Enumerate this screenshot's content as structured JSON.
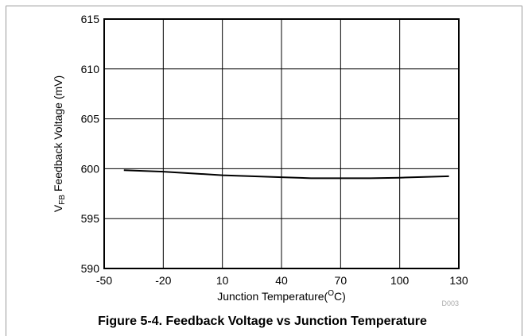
{
  "chart_data": {
    "type": "line",
    "y_label": {
      "main": "V",
      "sub": "FB",
      "rest": " Feedback Voltage (mV)"
    },
    "x_label": {
      "main": "Junction Temperature(",
      "sup": "O",
      "rest": "C)"
    },
    "annotation": "D003",
    "caption": "Figure 5-4. Feedback Voltage vs Junction Temperature",
    "x": [
      -40,
      -20,
      10,
      40,
      55,
      70,
      85,
      100,
      125
    ],
    "series": [
      {
        "color": "#000000",
        "values": [
          599.85,
          599.7,
          599.35,
          599.15,
          599.05,
          599.05,
          599.05,
          599.1,
          599.25
        ]
      }
    ],
    "xlim": [
      -50,
      130
    ],
    "xticks": [
      -50,
      -20,
      10,
      40,
      70,
      100,
      130
    ],
    "ylim": [
      590,
      615
    ],
    "yticks": [
      590,
      595,
      600,
      605,
      610,
      615
    ],
    "grid": true
  }
}
